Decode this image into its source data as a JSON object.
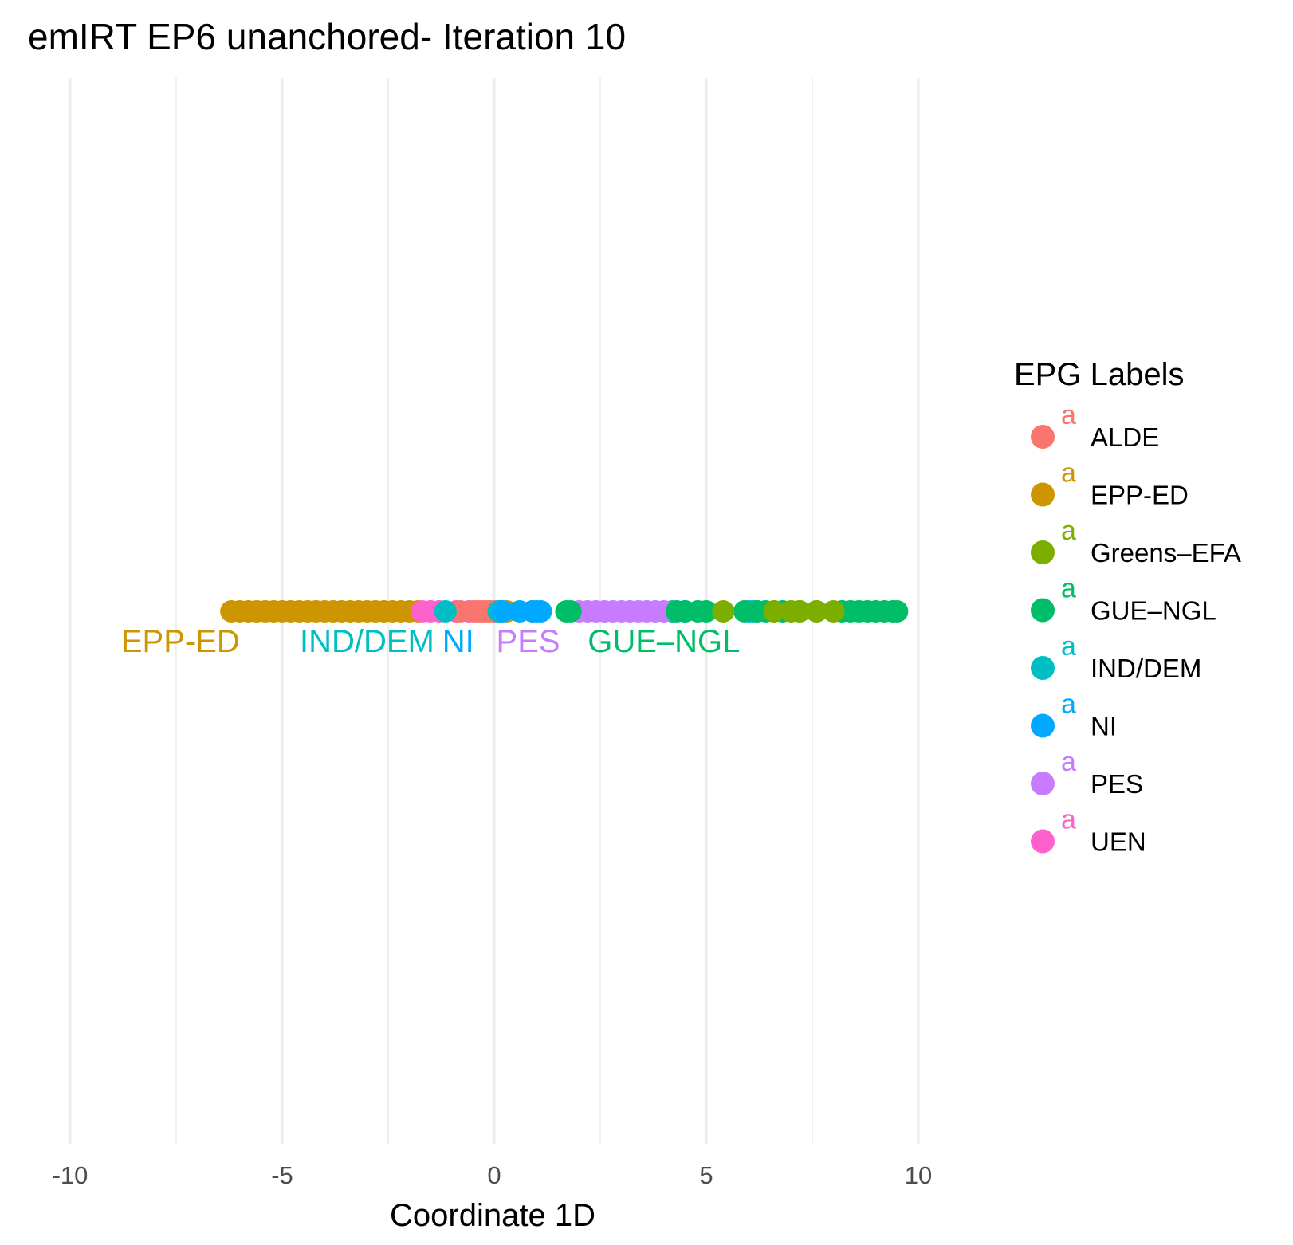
{
  "chart_data": {
    "type": "scatter",
    "title": "emIRT EP6 unanchored- Iteration 10",
    "xlabel": "Coordinate 1D",
    "ylabel": "",
    "xlim": [
      -10,
      10
    ],
    "x_ticks": [
      -10,
      -5,
      0,
      5,
      10
    ],
    "x_tick_labels": [
      "-10",
      "-5",
      "0",
      "5",
      "10"
    ],
    "grid": true,
    "legend": {
      "title": "EPG Labels",
      "position": "right",
      "key_glyph": "a",
      "entries": [
        {
          "name": "ALDE",
          "color": "#F8766D"
        },
        {
          "name": "EPP-ED",
          "color": "#CD9600"
        },
        {
          "name": "Greens–EFA",
          "color": "#7CAE00"
        },
        {
          "name": "GUE–NGL",
          "color": "#00BE67"
        },
        {
          "name": "IND/DEM",
          "color": "#00BFC4"
        },
        {
          "name": "NI",
          "color": "#00A9FF"
        },
        {
          "name": "PES",
          "color": "#C77CFF"
        },
        {
          "name": "UEN",
          "color": "#FF61CC"
        }
      ]
    },
    "series": [
      {
        "name": "EPP-ED",
        "x": [
          -6.2,
          -6.0,
          -5.8,
          -5.6,
          -5.4,
          -5.2,
          -5.0,
          -4.8,
          -4.6,
          -4.4,
          -4.2,
          -4.0,
          -3.8,
          -3.6,
          -3.4,
          -3.2,
          -3.0,
          -2.8,
          -2.6,
          -2.4,
          -2.2,
          -2.0,
          -1.8,
          0.3
        ]
      },
      {
        "name": "UEN",
        "x": [
          -1.7,
          -1.5,
          -1.3,
          -0.9,
          -0.6,
          0.1,
          0.9
        ]
      },
      {
        "name": "ALDE",
        "x": [
          -0.8,
          -0.5,
          -0.4,
          -0.3,
          -0.2,
          -0.1,
          0.0,
          0.15
        ]
      },
      {
        "name": "IND/DEM",
        "x": [
          -1.15,
          0.1,
          4.2,
          4.5,
          6.1
        ]
      },
      {
        "name": "NI",
        "x": [
          0.2,
          0.6,
          0.9,
          1.0,
          1.1,
          6.0,
          6.2
        ]
      },
      {
        "name": "PES",
        "x": [
          2.0,
          2.2,
          2.4,
          2.6,
          2.8,
          3.0,
          3.2,
          3.4,
          3.6,
          3.8,
          4.0
        ]
      },
      {
        "name": "GUE–NGL",
        "x": [
          1.7,
          1.8,
          4.3,
          4.5,
          4.8,
          5.0,
          5.9,
          6.2,
          6.4,
          6.6,
          6.8,
          7.2,
          7.6,
          8.2,
          8.4,
          8.6,
          8.8,
          9.0,
          9.2,
          9.4,
          9.5
        ]
      },
      {
        "name": "Greens–EFA",
        "x": [
          5.4,
          6.6,
          7.0,
          7.2,
          7.6,
          8.0
        ]
      }
    ],
    "annotations": [
      {
        "text": "EPP-ED",
        "x": -7.4,
        "color": "#CD9600"
      },
      {
        "text": "IND/DEM",
        "x": -3.0,
        "color": "#00BFC4"
      },
      {
        "text": "NI",
        "x": -0.85,
        "color": "#00A9FF"
      },
      {
        "text": "PES",
        "x": 0.8,
        "color": "#C77CFF"
      },
      {
        "text": "GUE–NGL",
        "x": 4.0,
        "color": "#00BE67"
      }
    ]
  }
}
